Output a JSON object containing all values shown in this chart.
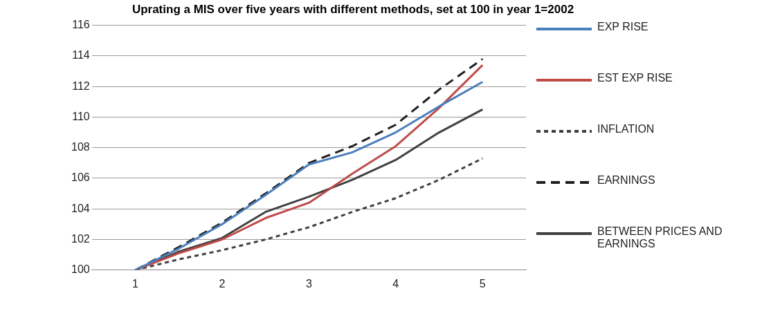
{
  "chart_data": {
    "type": "line",
    "title": "Uprating a MIS over five years with different methods, set at 100 in year 1=2002",
    "x": [
      1,
      1.5,
      2,
      2.5,
      3,
      3.5,
      4,
      4.5,
      5
    ],
    "xlim": [
      0.5,
      5.5
    ],
    "xticks": [
      1,
      2,
      3,
      4,
      5
    ],
    "ylim": [
      100,
      116
    ],
    "yticks": [
      100,
      102,
      104,
      106,
      108,
      110,
      112,
      114,
      116
    ],
    "grid": "y",
    "legend": "right",
    "marker": "none",
    "series": [
      {
        "name": "EXP RISE",
        "color": "#4a7ebb",
        "line_style": "solid",
        "values": [
          100,
          101.4,
          103.0,
          104.9,
          106.9,
          107.7,
          109.0,
          110.7,
          112.3
        ]
      },
      {
        "name": "EST EXP RISE",
        "color": "#be4b48",
        "line_style": "solid",
        "values": [
          100,
          101.1,
          102.0,
          103.4,
          104.4,
          106.3,
          108.1,
          110.6,
          113.4
        ]
      },
      {
        "name": "INFLATION",
        "color": "#404040",
        "line_style": "dotted",
        "values": [
          100,
          100.7,
          101.3,
          102.0,
          102.8,
          103.8,
          104.7,
          105.9,
          107.3
        ]
      },
      {
        "name": "EARNINGS",
        "color": "#202020",
        "line_style": "dashed",
        "values": [
          100,
          101.5,
          103.1,
          105.0,
          107.0,
          108.1,
          109.5,
          111.8,
          113.8
        ]
      },
      {
        "name": "BETWEEN PRICES AND EARNINGS",
        "color": "#404040",
        "line_style": "solid",
        "values": [
          100,
          101.2,
          102.1,
          103.8,
          104.8,
          105.9,
          107.2,
          109.0,
          110.5
        ]
      }
    ]
  }
}
